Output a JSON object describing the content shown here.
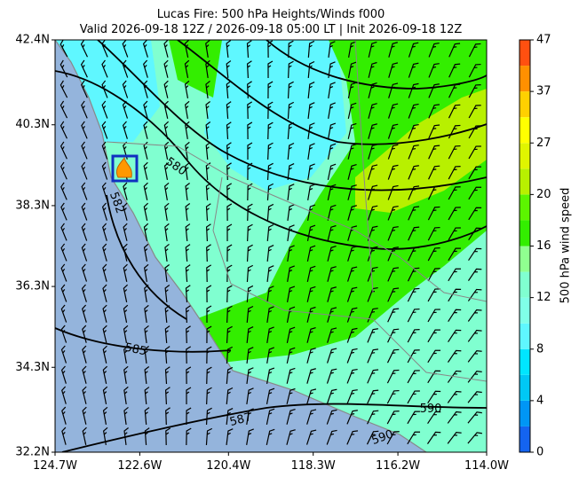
{
  "chart_data": {
    "type": "map",
    "title": "Lucas Fire: 500 hPa Heights/Winds f000",
    "subtitle": "Valid 2026-09-18 12Z / 2026-09-18 05:00 LT | Init 2026-09-18 12Z",
    "xlim": [
      -124.7,
      -114.0
    ],
    "ylim": [
      32.2,
      42.4
    ],
    "xticks": [
      {
        "value": -124.7,
        "label": "124.7W"
      },
      {
        "value": -122.6,
        "label": "122.6W"
      },
      {
        "value": -120.4,
        "label": "120.4W"
      },
      {
        "value": -118.3,
        "label": "118.3W"
      },
      {
        "value": -116.2,
        "label": "116.2W"
      },
      {
        "value": -114.0,
        "label": "114.0W"
      }
    ],
    "yticks": [
      {
        "value": 32.2,
        "label": "32.2N"
      },
      {
        "value": 34.3,
        "label": "34.3N"
      },
      {
        "value": 36.3,
        "label": "36.3N"
      },
      {
        "value": 38.3,
        "label": "38.3N"
      },
      {
        "value": 40.3,
        "label": "40.3N"
      },
      {
        "value": 42.4,
        "label": "42.4N"
      }
    ],
    "colorbar": {
      "label": "500 hPa wind speed",
      "levels": [
        0,
        2,
        4,
        6,
        8,
        10,
        12,
        14,
        16,
        18,
        20,
        23.5,
        27,
        32,
        37,
        42,
        47
      ],
      "colors": [
        "#1464f0",
        "#0096f5",
        "#00c8f5",
        "#00e6ff",
        "#5ff7ff",
        "#80ffe8",
        "#80ffd0",
        "#90ff90",
        "#33ee00",
        "#5cf500",
        "#b8f000",
        "#e0f500",
        "#ffff00",
        "#ffd000",
        "#ff9000",
        "#ff5010"
      ],
      "ticks": [
        0,
        4,
        8,
        12,
        16,
        20,
        27,
        37,
        47
      ]
    },
    "contour_labels": [
      "580",
      "582",
      "585",
      "587",
      "590",
      "590"
    ]
  }
}
